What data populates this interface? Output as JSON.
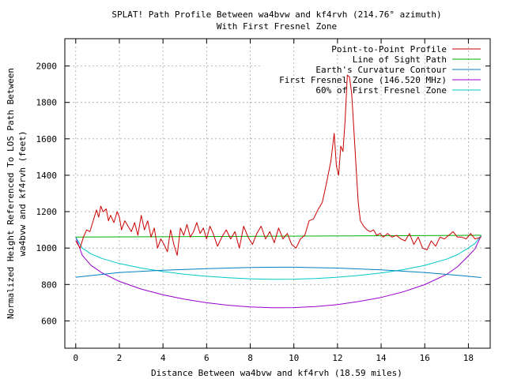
{
  "chart_data": {
    "type": "line",
    "title_line1": "SPLAT! Path Profile Between wa4bvw and kf4rvh (214.76° azimuth)",
    "title_line2": "With First Fresnel Zone",
    "xlabel": "Distance Between wa4bvw and kf4rvh (18.59 miles)",
    "ylabel_line1": "Normalized Height Referenced To LOS Path Between",
    "ylabel_line2": "wa4bvw and kf4rvh (feet)",
    "xlim": [
      -0.5,
      19.0
    ],
    "ylim": [
      450,
      2150
    ],
    "x_ticks": [
      0,
      2,
      4,
      6,
      8,
      10,
      12,
      14,
      16,
      18
    ],
    "y_ticks": [
      600,
      800,
      1000,
      1200,
      1400,
      1600,
      1800,
      2000
    ],
    "grid": true,
    "legend_position": "top-right",
    "series": [
      {
        "name": "Point-to-Point Profile",
        "color": "#cc0000",
        "x": [
          0,
          0.2,
          0.35,
          0.5,
          0.65,
          0.8,
          0.95,
          1.05,
          1.15,
          1.25,
          1.4,
          1.5,
          1.6,
          1.75,
          1.9,
          2.0,
          2.1,
          2.25,
          2.4,
          2.55,
          2.7,
          2.85,
          3.0,
          3.15,
          3.3,
          3.45,
          3.6,
          3.75,
          3.9,
          4.05,
          4.2,
          4.35,
          4.5,
          4.65,
          4.8,
          4.95,
          5.1,
          5.25,
          5.4,
          5.55,
          5.7,
          5.85,
          6.0,
          6.15,
          6.3,
          6.5,
          6.7,
          6.9,
          7.1,
          7.3,
          7.5,
          7.7,
          7.9,
          8.1,
          8.3,
          8.5,
          8.7,
          8.9,
          9.1,
          9.3,
          9.5,
          9.7,
          9.9,
          10.1,
          10.3,
          10.5,
          10.7,
          10.9,
          11.1,
          11.3,
          11.5,
          11.7,
          11.85,
          11.95,
          12.05,
          12.15,
          12.25,
          12.35,
          12.45,
          12.55,
          12.65,
          12.75,
          12.85,
          12.95,
          13.05,
          13.2,
          13.35,
          13.5,
          13.65,
          13.8,
          13.95,
          14.1,
          14.3,
          14.5,
          14.7,
          14.9,
          15.1,
          15.3,
          15.5,
          15.7,
          15.9,
          16.1,
          16.3,
          16.5,
          16.7,
          16.9,
          17.1,
          17.3,
          17.5,
          17.7,
          17.9,
          18.1,
          18.3,
          18.59
        ],
        "values": [
          1040,
          1000,
          1060,
          1100,
          1090,
          1150,
          1210,
          1170,
          1230,
          1200,
          1215,
          1150,
          1180,
          1140,
          1200,
          1170,
          1100,
          1150,
          1120,
          1090,
          1140,
          1070,
          1180,
          1100,
          1150,
          1060,
          1110,
          1000,
          1050,
          1020,
          980,
          1100,
          1020,
          960,
          1110,
          1070,
          1130,
          1060,
          1090,
          1140,
          1080,
          1110,
          1050,
          1120,
          1080,
          1010,
          1060,
          1100,
          1050,
          1090,
          1000,
          1120,
          1060,
          1020,
          1080,
          1120,
          1050,
          1090,
          1030,
          1110,
          1050,
          1080,
          1020,
          1000,
          1050,
          1070,
          1150,
          1160,
          1210,
          1250,
          1360,
          1480,
          1630,
          1450,
          1400,
          1560,
          1530,
          1700,
          1950,
          1940,
          1850,
          1650,
          1450,
          1250,
          1150,
          1120,
          1100,
          1090,
          1100,
          1070,
          1080,
          1060,
          1080,
          1060,
          1070,
          1050,
          1040,
          1080,
          1020,
          1060,
          1000,
          990,
          1040,
          1010,
          1060,
          1050,
          1070,
          1090,
          1060,
          1060,
          1050,
          1080,
          1050,
          1060
        ]
      },
      {
        "name": "Line of Sight Path",
        "color": "#00b000",
        "x": [
          0,
          18.59
        ],
        "values": [
          1060,
          1070
        ]
      },
      {
        "name": "Earth's Curvature Contour",
        "color": "#0080c0",
        "x": [
          0,
          2,
          4,
          6,
          8,
          9.3,
          10,
          12,
          14,
          16,
          18,
          18.59
        ],
        "values": [
          840,
          866,
          878,
          887,
          893,
          895,
          895,
          890,
          880,
          866,
          845,
          838
        ]
      },
      {
        "name": "First Fresnel Zone (146.520 MHz)",
        "color": "#9900cc",
        "x": [
          0,
          0.3,
          0.7,
          1.2,
          2,
          3,
          4,
          5,
          6,
          7,
          8,
          9,
          9.3,
          10,
          11,
          12,
          13,
          14,
          15,
          16,
          17,
          17.5,
          17.9,
          18.3,
          18.59
        ],
        "values": [
          1060,
          960,
          905,
          864,
          817,
          775,
          743,
          719,
          700,
          686,
          677,
          672,
          672,
          673,
          679,
          690,
          707,
          729,
          759,
          799,
          855,
          897,
          945,
          995,
          1070
        ]
      },
      {
        "name": "60% of First Fresnel Zone",
        "color": "#00c8c8",
        "x": [
          0,
          0.3,
          0.7,
          1.2,
          2,
          3,
          4,
          5,
          6,
          7,
          8,
          9,
          9.3,
          10,
          11,
          12,
          13,
          14,
          15,
          16,
          17,
          17.5,
          17.9,
          18.3,
          18.59
        ],
        "values": [
          1060,
          1000,
          968,
          943,
          915,
          890,
          871,
          856,
          845,
          837,
          831,
          828,
          828,
          829,
          833,
          840,
          850,
          863,
          881,
          905,
          939,
          964,
          993,
          1025,
          1070
        ]
      }
    ]
  }
}
